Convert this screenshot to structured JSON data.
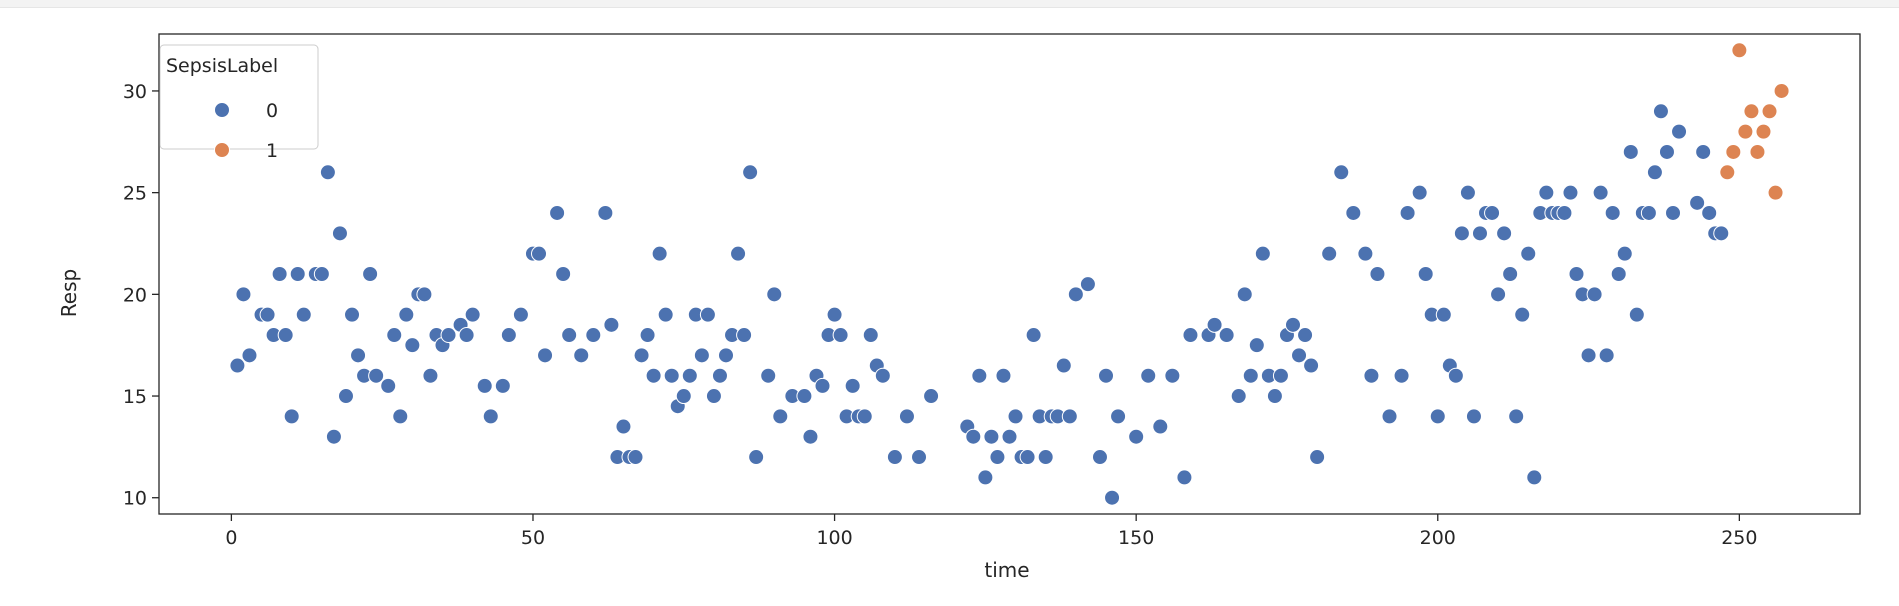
{
  "chart_data": {
    "type": "scatter",
    "xlabel": "time",
    "ylabel": "Resp",
    "xlim": [
      -12,
      270
    ],
    "ylim": [
      9.2,
      32.8
    ],
    "x_ticks": [
      0,
      50,
      100,
      150,
      200,
      250
    ],
    "y_ticks": [
      10,
      15,
      20,
      25,
      30
    ],
    "grid": false,
    "legend": {
      "title": "SepsisLabel",
      "placement": "top-left"
    },
    "hue": "SepsisLabel",
    "series": [
      {
        "name": "0",
        "color": "#4c72b0",
        "points": [
          [
            1,
            16.5
          ],
          [
            2,
            20
          ],
          [
            3,
            17
          ],
          [
            5,
            19
          ],
          [
            6,
            19
          ],
          [
            7,
            18
          ],
          [
            8,
            21
          ],
          [
            9,
            18
          ],
          [
            10,
            14
          ],
          [
            11,
            21
          ],
          [
            12,
            19
          ],
          [
            14,
            21
          ],
          [
            15,
            21
          ],
          [
            16,
            26
          ],
          [
            17,
            13
          ],
          [
            18,
            23
          ],
          [
            19,
            15
          ],
          [
            20,
            19
          ],
          [
            21,
            17
          ],
          [
            22,
            16
          ],
          [
            23,
            21
          ],
          [
            24,
            16
          ],
          [
            26,
            15.5
          ],
          [
            27,
            18
          ],
          [
            28,
            14
          ],
          [
            29,
            19
          ],
          [
            30,
            17.5
          ],
          [
            31,
            20
          ],
          [
            32,
            20
          ],
          [
            33,
            16
          ],
          [
            34,
            18
          ],
          [
            35,
            17.5
          ],
          [
            36,
            18
          ],
          [
            38,
            18.5
          ],
          [
            39,
            18
          ],
          [
            40,
            19
          ],
          [
            42,
            15.5
          ],
          [
            43,
            14
          ],
          [
            45,
            15.5
          ],
          [
            46,
            18
          ],
          [
            48,
            19
          ],
          [
            50,
            22
          ],
          [
            51,
            22
          ],
          [
            52,
            17
          ],
          [
            54,
            24
          ],
          [
            55,
            21
          ],
          [
            56,
            18
          ],
          [
            58,
            17
          ],
          [
            60,
            18
          ],
          [
            62,
            24
          ],
          [
            63,
            18.5
          ],
          [
            64,
            12
          ],
          [
            65,
            13.5
          ],
          [
            66,
            12
          ],
          [
            67,
            12
          ],
          [
            68,
            17
          ],
          [
            69,
            18
          ],
          [
            70,
            16
          ],
          [
            71,
            22
          ],
          [
            72,
            19
          ],
          [
            73,
            16
          ],
          [
            74,
            14.5
          ],
          [
            75,
            15
          ],
          [
            76,
            16
          ],
          [
            77,
            19
          ],
          [
            78,
            17
          ],
          [
            79,
            19
          ],
          [
            80,
            15
          ],
          [
            81,
            16
          ],
          [
            82,
            17
          ],
          [
            83,
            18
          ],
          [
            84,
            22
          ],
          [
            85,
            18
          ],
          [
            86,
            26
          ],
          [
            87,
            12
          ],
          [
            89,
            16
          ],
          [
            90,
            20
          ],
          [
            91,
            14
          ],
          [
            93,
            15
          ],
          [
            95,
            15
          ],
          [
            96,
            13
          ],
          [
            97,
            16
          ],
          [
            98,
            15.5
          ],
          [
            99,
            18
          ],
          [
            100,
            19
          ],
          [
            101,
            18
          ],
          [
            102,
            14
          ],
          [
            103,
            15.5
          ],
          [
            104,
            14
          ],
          [
            105,
            14
          ],
          [
            106,
            18
          ],
          [
            107,
            16.5
          ],
          [
            108,
            16
          ],
          [
            110,
            12
          ],
          [
            112,
            14
          ],
          [
            114,
            12
          ],
          [
            116,
            15
          ],
          [
            122,
            13.5
          ],
          [
            123,
            13
          ],
          [
            124,
            16
          ],
          [
            125,
            11
          ],
          [
            126,
            13
          ],
          [
            127,
            12
          ],
          [
            128,
            16
          ],
          [
            129,
            13
          ],
          [
            130,
            14
          ],
          [
            131,
            12
          ],
          [
            132,
            12
          ],
          [
            133,
            18
          ],
          [
            134,
            14
          ],
          [
            135,
            12
          ],
          [
            136,
            14
          ],
          [
            137,
            14
          ],
          [
            138,
            16.5
          ],
          [
            139,
            14
          ],
          [
            140,
            20
          ],
          [
            142,
            20.5
          ],
          [
            144,
            12
          ],
          [
            145,
            16
          ],
          [
            146,
            10
          ],
          [
            147,
            14
          ],
          [
            150,
            13
          ],
          [
            152,
            16
          ],
          [
            154,
            13.5
          ],
          [
            156,
            16
          ],
          [
            158,
            11
          ],
          [
            159,
            18
          ],
          [
            162,
            18
          ],
          [
            163,
            18.5
          ],
          [
            165,
            18
          ],
          [
            167,
            15
          ],
          [
            168,
            20
          ],
          [
            169,
            16
          ],
          [
            170,
            17.5
          ],
          [
            171,
            22
          ],
          [
            172,
            16
          ],
          [
            173,
            15
          ],
          [
            174,
            16
          ],
          [
            175,
            18
          ],
          [
            176,
            18.5
          ],
          [
            177,
            17
          ],
          [
            178,
            18
          ],
          [
            179,
            16.5
          ],
          [
            180,
            12
          ],
          [
            182,
            22
          ],
          [
            184,
            26
          ],
          [
            186,
            24
          ],
          [
            188,
            22
          ],
          [
            189,
            16
          ],
          [
            190,
            21
          ],
          [
            192,
            14
          ],
          [
            194,
            16
          ],
          [
            195,
            24
          ],
          [
            197,
            25
          ],
          [
            198,
            21
          ],
          [
            199,
            19
          ],
          [
            200,
            14
          ],
          [
            201,
            19
          ],
          [
            202,
            16.5
          ],
          [
            203,
            16
          ],
          [
            204,
            23
          ],
          [
            205,
            25
          ],
          [
            206,
            14
          ],
          [
            207,
            23
          ],
          [
            208,
            24
          ],
          [
            209,
            24
          ],
          [
            210,
            20
          ],
          [
            211,
            23
          ],
          [
            212,
            21
          ],
          [
            213,
            14
          ],
          [
            214,
            19
          ],
          [
            215,
            22
          ],
          [
            216,
            11
          ],
          [
            217,
            24
          ],
          [
            218,
            25
          ],
          [
            219,
            24
          ],
          [
            220,
            24
          ],
          [
            221,
            24
          ],
          [
            222,
            25
          ],
          [
            223,
            21
          ],
          [
            224,
            20
          ],
          [
            225,
            17
          ],
          [
            226,
            20
          ],
          [
            227,
            25
          ],
          [
            228,
            17
          ],
          [
            229,
            24
          ],
          [
            230,
            21
          ],
          [
            231,
            22
          ],
          [
            232,
            27
          ],
          [
            233,
            19
          ],
          [
            234,
            24
          ],
          [
            235,
            24
          ],
          [
            236,
            26
          ],
          [
            237,
            29
          ],
          [
            238,
            27
          ],
          [
            239,
            24
          ],
          [
            240,
            28
          ],
          [
            243,
            24.5
          ],
          [
            244,
            27
          ],
          [
            245,
            24
          ],
          [
            246,
            23
          ],
          [
            247,
            23
          ]
        ]
      },
      {
        "name": "1",
        "color": "#dd8452",
        "points": [
          [
            248,
            26
          ],
          [
            249,
            27
          ],
          [
            250,
            32
          ],
          [
            251,
            28
          ],
          [
            252,
            29
          ],
          [
            253,
            27
          ],
          [
            254,
            28
          ],
          [
            255,
            29
          ],
          [
            256,
            25
          ],
          [
            257,
            30
          ]
        ]
      }
    ]
  }
}
